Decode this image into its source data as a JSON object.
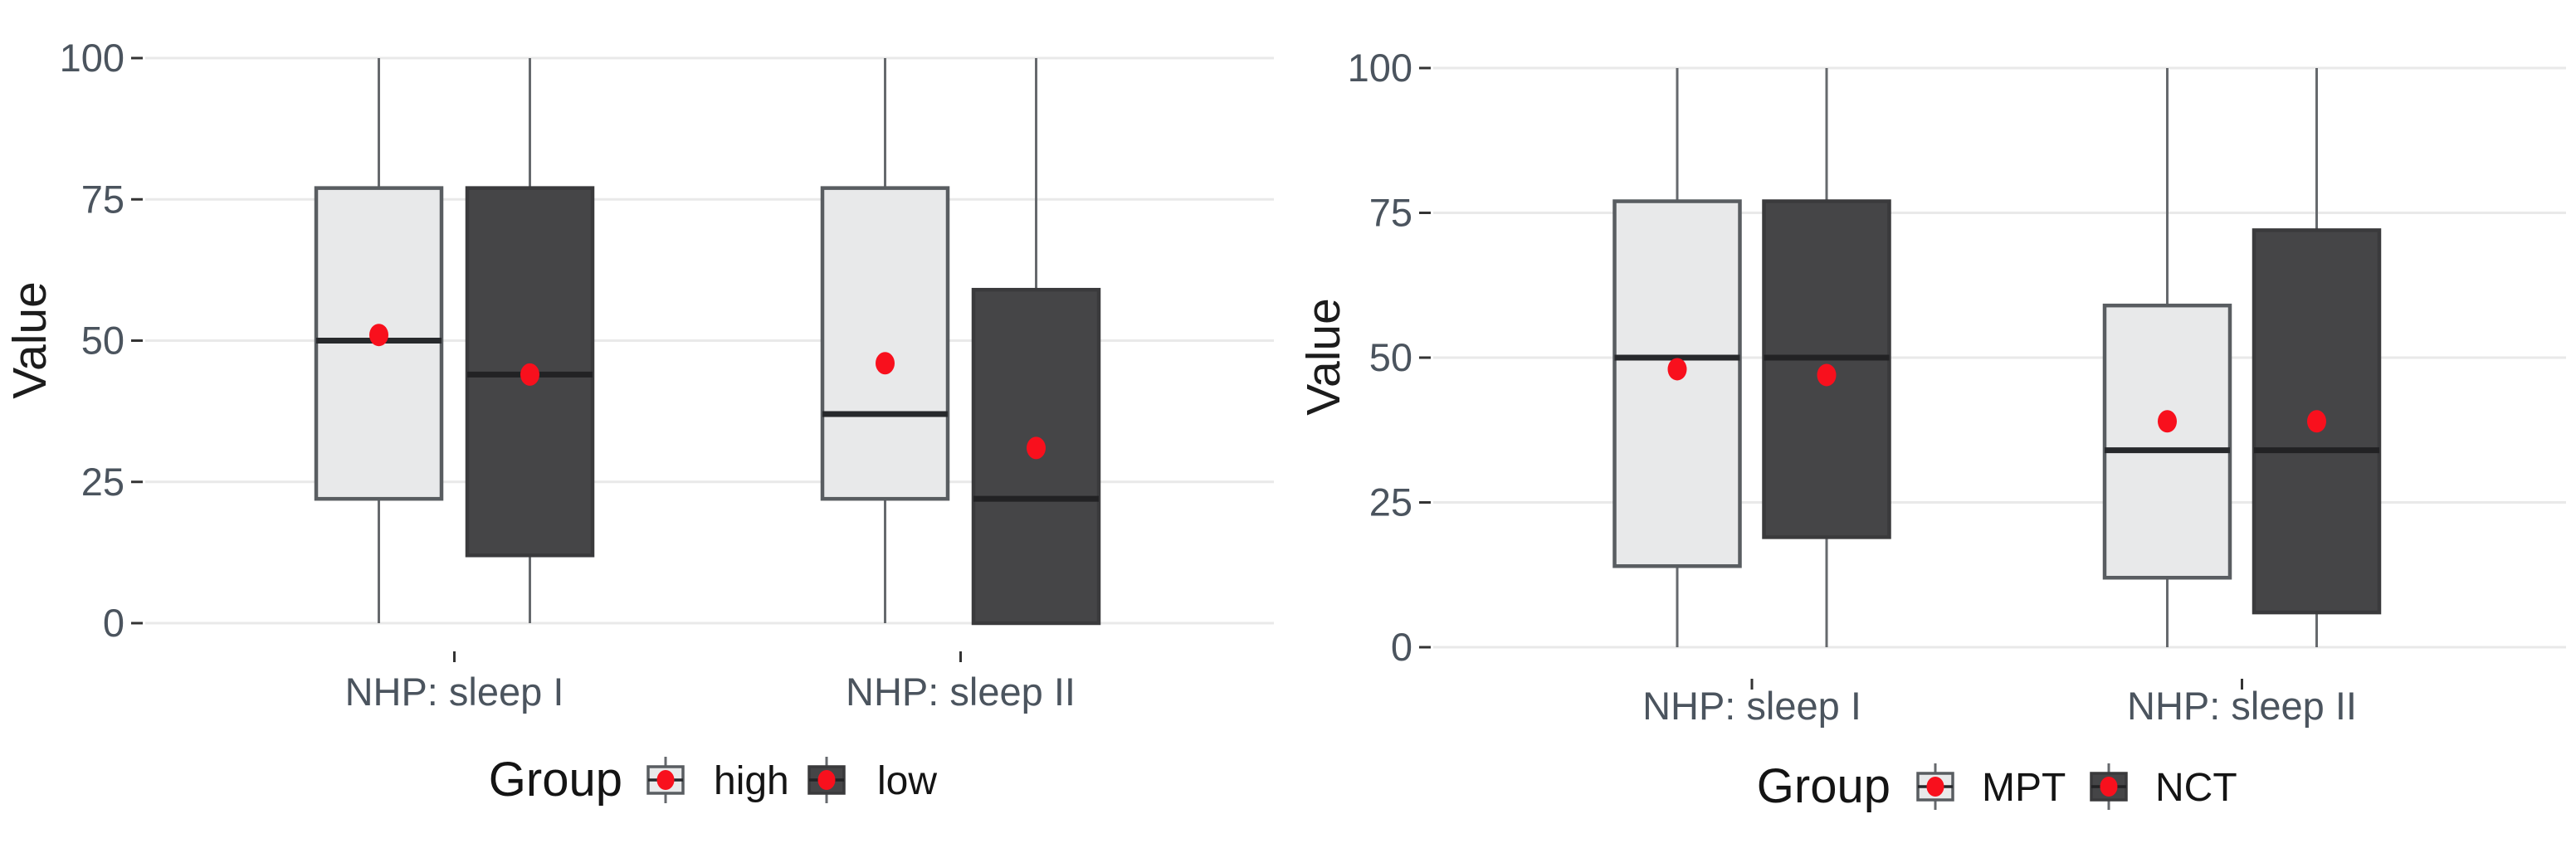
{
  "figure": {
    "background": "#ffffff",
    "description": "Two grouped boxplot panels showing Value distributions for NHP sleep scales split by Group"
  },
  "chart_data": [
    {
      "type": "boxplot",
      "panel": "left",
      "title": "",
      "xlabel": "",
      "ylabel": "Value",
      "ylim": [
        0,
        100
      ],
      "yticks": [
        0,
        25,
        50,
        75,
        100
      ],
      "grid": "horizontal-gridlines",
      "legend_position": "bottom",
      "legend_title": "Group",
      "categories": [
        "NHP: sleep I",
        "NHP: sleep II"
      ],
      "series": [
        {
          "name": "high",
          "fill": "#e8e9ea",
          "border": "#595d61",
          "median_color": "#27292c",
          "boxes": [
            {
              "category": "NHP: sleep I",
              "whisker_min": 0,
              "q1": 22,
              "median": 50,
              "q3": 77,
              "whisker_max": 100,
              "mean": 51
            },
            {
              "category": "NHP: sleep II",
              "whisker_min": 0,
              "q1": 22,
              "median": 37,
              "q3": 77,
              "whisker_max": 100,
              "mean": 46
            }
          ]
        },
        {
          "name": "low",
          "fill": "#454547",
          "border": "#3a3a3c",
          "median_color": "#222224",
          "boxes": [
            {
              "category": "NHP: sleep I",
              "whisker_min": 0,
              "q1": 12,
              "median": 44,
              "q3": 77,
              "whisker_max": 100,
              "mean": 44
            },
            {
              "category": "NHP: sleep II",
              "whisker_min": 0,
              "q1": 0,
              "median": 22,
              "q3": 59,
              "whisker_max": 100,
              "mean": 31
            }
          ]
        }
      ],
      "mean_point_color": "#f8101d",
      "colors": {
        "gridline": "#e9e9e9",
        "tick": "#333333",
        "tick_label": "#4b545e",
        "axis_title": "#1c1c1c",
        "legend_text": "#141414",
        "whisker": "#66696d"
      }
    },
    {
      "type": "boxplot",
      "panel": "right",
      "title": "",
      "xlabel": "",
      "ylabel": "Value",
      "ylim": [
        0,
        100
      ],
      "yticks": [
        0,
        25,
        50,
        75,
        100
      ],
      "grid": "horizontal-gridlines",
      "legend_position": "bottom",
      "legend_title": "Group",
      "categories": [
        "NHP: sleep I",
        "NHP: sleep II"
      ],
      "series": [
        {
          "name": "MPT",
          "fill": "#e8e9ea",
          "border": "#595d61",
          "median_color": "#27292c",
          "boxes": [
            {
              "category": "NHP: sleep I",
              "whisker_min": 0,
              "q1": 14,
              "median": 50,
              "q3": 77,
              "whisker_max": 100,
              "mean": 48
            },
            {
              "category": "NHP: sleep II",
              "whisker_min": 0,
              "q1": 12,
              "median": 34,
              "q3": 59,
              "whisker_max": 100,
              "mean": 39
            }
          ]
        },
        {
          "name": "NCT",
          "fill": "#454547",
          "border": "#3a3a3c",
          "median_color": "#222224",
          "boxes": [
            {
              "category": "NHP: sleep I",
              "whisker_min": 0,
              "q1": 19,
              "median": 50,
              "q3": 77,
              "whisker_max": 100,
              "mean": 47
            },
            {
              "category": "NHP: sleep II",
              "whisker_min": 0,
              "q1": 6,
              "median": 34,
              "q3": 72,
              "whisker_max": 100,
              "mean": 39
            }
          ]
        }
      ],
      "mean_point_color": "#f8101d",
      "colors": {
        "gridline": "#e9e9e9",
        "tick": "#333333",
        "tick_label": "#4b545e",
        "axis_title": "#1c1c1c",
        "legend_text": "#141414",
        "whisker": "#66696d"
      }
    }
  ]
}
